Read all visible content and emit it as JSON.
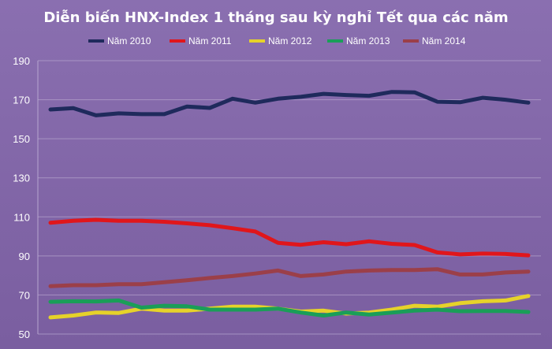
{
  "chart_data": {
    "type": "line",
    "title": "Diễn biến HNX-Index 1 tháng sau kỳ nghỉ Tết qua các năm",
    "xlabel": "",
    "ylabel": "",
    "ylim": [
      50,
      190
    ],
    "yticks": [
      50,
      70,
      90,
      110,
      130,
      150,
      170,
      190
    ],
    "grid": true,
    "legend_position": "top",
    "background_color": "#8064a2",
    "x": [
      1,
      2,
      3,
      4,
      5,
      6,
      7,
      8,
      9,
      10,
      11,
      12,
      13,
      14,
      15,
      16,
      17,
      18,
      19,
      20,
      21,
      22
    ],
    "series": [
      {
        "name": "Năm 2010",
        "color": "#1f2a5c",
        "values": [
          165,
          165.7,
          162,
          163,
          162.6,
          162.6,
          166.5,
          165.8,
          170.5,
          168.5,
          170.5,
          171.5,
          173,
          172.4,
          172,
          174,
          173.8,
          169,
          168.7,
          171,
          170,
          168.5
        ]
      },
      {
        "name": "Năm 2011",
        "color": "#e0161b",
        "values": [
          107,
          108,
          108.5,
          108,
          108,
          107.5,
          106.7,
          105.7,
          104.2,
          102.5,
          96.7,
          95.7,
          97,
          96,
          97.5,
          96.2,
          95.6,
          91.8,
          90.8,
          91.2,
          91,
          90.3
        ]
      },
      {
        "name": "Năm 2012",
        "color": "#e6d22a",
        "values": [
          58.5,
          59.5,
          61,
          60.8,
          63,
          62,
          62,
          63,
          64,
          64,
          63,
          61.5,
          62,
          60.5,
          61,
          62.5,
          64.5,
          64,
          65.8,
          66.8,
          67.2,
          69.5
        ]
      },
      {
        "name": "Năm 2013",
        "color": "#1a9e58",
        "values": [
          66.5,
          66.8,
          66.7,
          67.2,
          63.5,
          64.5,
          64.2,
          62.5,
          62.5,
          62.5,
          63,
          61,
          59.5,
          61,
          60,
          61,
          62,
          62.5,
          61.7,
          61.8,
          61.8,
          61.3
        ]
      },
      {
        "name": "Năm 2014",
        "color": "#9b3f49",
        "values": [
          74.5,
          75,
          75,
          75.5,
          75.5,
          76.5,
          77.5,
          78.7,
          79.7,
          81,
          82.5,
          79.7,
          80.5,
          82,
          82.5,
          82.8,
          82.8,
          83.2,
          80.5,
          80.5,
          81.5,
          82
        ]
      }
    ]
  }
}
